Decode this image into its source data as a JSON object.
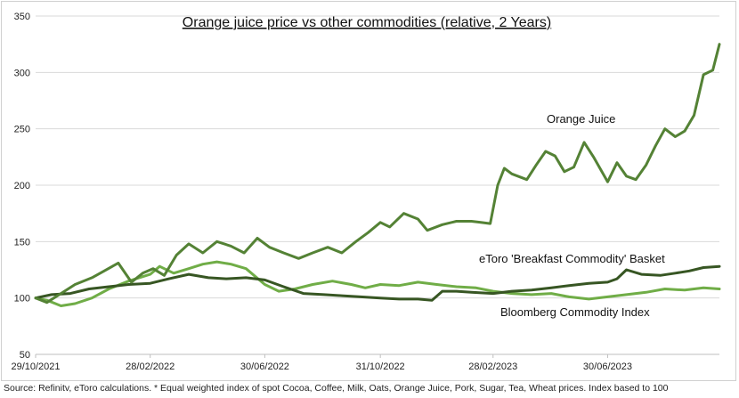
{
  "chart_data": {
    "type": "line",
    "title": "Orange juice price vs other commodities (relative, 2 Years)",
    "xlabel": "",
    "ylabel": "",
    "ylim": [
      50,
      350
    ],
    "yticks": [
      50,
      100,
      150,
      200,
      250,
      300,
      350
    ],
    "x_tick_labels": [
      "29/10/2021",
      "28/02/2022",
      "30/06/2022",
      "31/10/2022",
      "28/02/2023",
      "30/06/2023"
    ],
    "x_tick_dates": [
      "2021-10-29",
      "2022-02-28",
      "2022-06-30",
      "2022-10-31",
      "2023-02-28",
      "2023-06-30"
    ],
    "xlim": [
      "2021-10-29",
      "2023-10-27"
    ],
    "grid": "horizontal",
    "series": [
      {
        "name": "Orange Juice",
        "color": "#548235",
        "x": [
          "2021-10-29",
          "2021-11-10",
          "2021-11-25",
          "2021-12-10",
          "2021-12-28",
          "2022-01-10",
          "2022-01-25",
          "2022-02-08",
          "2022-02-20",
          "2022-03-03",
          "2022-03-15",
          "2022-03-28",
          "2022-04-10",
          "2022-04-25",
          "2022-05-10",
          "2022-05-25",
          "2022-06-08",
          "2022-06-22",
          "2022-07-05",
          "2022-07-20",
          "2022-08-05",
          "2022-08-20",
          "2022-09-05",
          "2022-09-20",
          "2022-10-05",
          "2022-10-18",
          "2022-10-31",
          "2022-11-10",
          "2022-11-25",
          "2022-12-10",
          "2022-12-20",
          "2023-01-05",
          "2023-01-20",
          "2023-02-05",
          "2023-02-15",
          "2023-02-25",
          "2023-03-05",
          "2023-03-12",
          "2023-03-20",
          "2023-04-05",
          "2023-04-15",
          "2023-04-25",
          "2023-05-05",
          "2023-05-15",
          "2023-05-25",
          "2023-06-05",
          "2023-06-15",
          "2023-06-30",
          "2023-07-10",
          "2023-07-20",
          "2023-07-30",
          "2023-08-10",
          "2023-08-20",
          "2023-08-30",
          "2023-09-10",
          "2023-09-20",
          "2023-09-30",
          "2023-10-10",
          "2023-10-20",
          "2023-10-27"
        ],
        "values": [
          100,
          96,
          104,
          112,
          118,
          124,
          131,
          114,
          122,
          126,
          120,
          138,
          148,
          140,
          150,
          146,
          140,
          153,
          145,
          140,
          135,
          140,
          145,
          140,
          150,
          158,
          167,
          163,
          175,
          170,
          160,
          165,
          168,
          168,
          167,
          166,
          200,
          215,
          210,
          205,
          218,
          230,
          226,
          212,
          216,
          238,
          225,
          203,
          220,
          208,
          205,
          218,
          235,
          250,
          243,
          248,
          262,
          298,
          302,
          325
        ]
      },
      {
        "name": "eToro 'Breakfast Commodity' Basket",
        "color": "#375623",
        "x": [
          "2021-10-29",
          "2021-11-15",
          "2021-12-05",
          "2021-12-25",
          "2022-01-15",
          "2022-02-05",
          "2022-02-28",
          "2022-03-20",
          "2022-04-10",
          "2022-05-01",
          "2022-05-20",
          "2022-06-10",
          "2022-06-30",
          "2022-07-20",
          "2022-08-10",
          "2022-09-01",
          "2022-09-20",
          "2022-10-10",
          "2022-10-31",
          "2022-11-20",
          "2022-12-10",
          "2022-12-25",
          "2023-01-05",
          "2023-01-20",
          "2023-02-05",
          "2023-02-28",
          "2023-03-20",
          "2023-04-10",
          "2023-05-01",
          "2023-05-20",
          "2023-06-10",
          "2023-06-30",
          "2023-07-10",
          "2023-07-20",
          "2023-08-05",
          "2023-08-25",
          "2023-09-10",
          "2023-09-25",
          "2023-10-10",
          "2023-10-27"
        ],
        "values": [
          100,
          103,
          104,
          108,
          110,
          112,
          113,
          117,
          121,
          118,
          117,
          118,
          116,
          110,
          104,
          103,
          102,
          101,
          100,
          99,
          99,
          98,
          106,
          106,
          105,
          104,
          106,
          107,
          109,
          111,
          113,
          114,
          117,
          125,
          121,
          120,
          122,
          124,
          127,
          128
        ]
      },
      {
        "name": "Bloomberg Commodity Index",
        "color": "#70ad47",
        "x": [
          "2021-10-29",
          "2021-11-10",
          "2021-11-25",
          "2021-12-10",
          "2021-12-28",
          "2022-01-15",
          "2022-02-05",
          "2022-02-28",
          "2022-03-10",
          "2022-03-25",
          "2022-04-10",
          "2022-04-25",
          "2022-05-10",
          "2022-05-25",
          "2022-06-10",
          "2022-06-30",
          "2022-07-15",
          "2022-08-01",
          "2022-08-20",
          "2022-09-10",
          "2022-09-30",
          "2022-10-15",
          "2022-10-31",
          "2022-11-20",
          "2022-12-10",
          "2022-12-30",
          "2023-01-20",
          "2023-02-10",
          "2023-02-28",
          "2023-03-20",
          "2023-04-10",
          "2023-05-01",
          "2023-05-20",
          "2023-06-10",
          "2023-06-30",
          "2023-07-20",
          "2023-08-10",
          "2023-08-30",
          "2023-09-20",
          "2023-10-10",
          "2023-10-27"
        ],
        "values": [
          100,
          98,
          93,
          95,
          100,
          108,
          115,
          121,
          128,
          122,
          126,
          130,
          132,
          130,
          126,
          112,
          106,
          108,
          112,
          115,
          112,
          109,
          112,
          111,
          114,
          112,
          110,
          109,
          106,
          104,
          103,
          104,
          101,
          99,
          101,
          103,
          105,
          108,
          107,
          109,
          108
        ]
      }
    ],
    "annotations": [
      {
        "text": "Orange Juice",
        "series": 0
      },
      {
        "text": "eToro 'Breakfast Commodity' Basket",
        "series": 1
      },
      {
        "text": "Bloomberg Commodity Index",
        "series": 2
      }
    ]
  },
  "source_note": "Source: Refinitv, eToro calculations. * Equal weighted index of spot Cocoa, Coffee, Milk, Oats, Orange Juice, Pork, Sugar, Tea, Wheat prices. Index based to 100"
}
